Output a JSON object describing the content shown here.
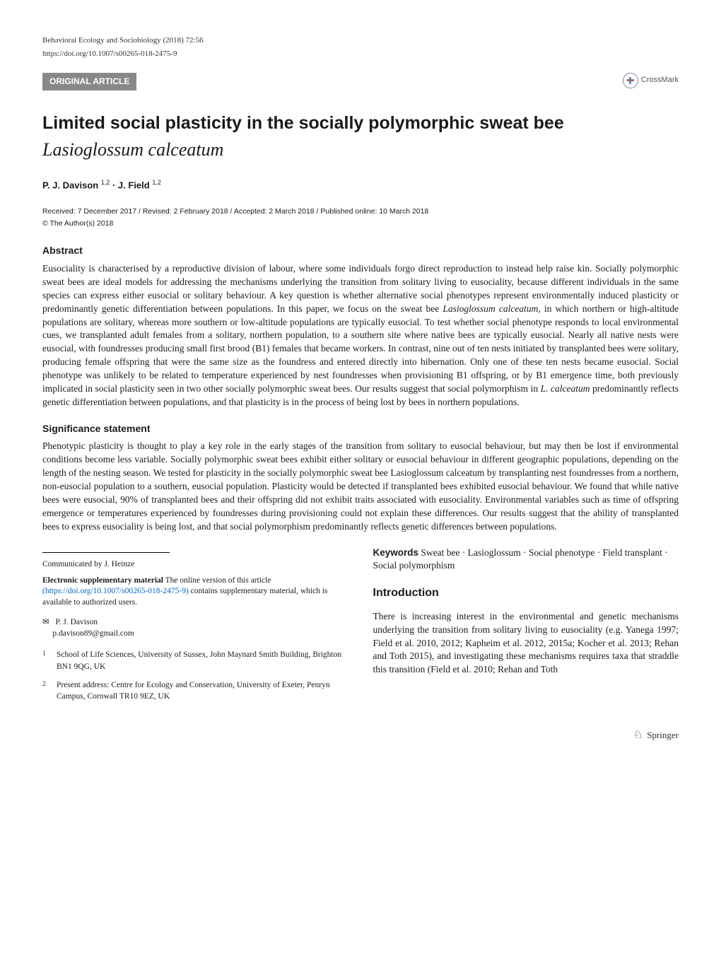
{
  "journal": {
    "citation": "Behavioral Ecology and Sociobiology (2018) 72:56",
    "doi": "https://doi.org/10.1007/s00265-018-2475-9"
  },
  "article_type": "ORIGINAL ARTICLE",
  "crossmark_label": "CrossMark",
  "title": {
    "line1": "Limited social plasticity in the socially polymorphic sweat bee",
    "line2": "Lasioglossum calceatum"
  },
  "authors_html": "P. J. Davison <sup>1,2</sup> · J. Field <sup>1,2</sup>",
  "dates": "Received: 7 December 2017 / Revised: 2 February 2018 / Accepted: 2 March 2018 / Published online: 10 March 2018",
  "copyright": "© The Author(s) 2018",
  "abstract": {
    "heading": "Abstract",
    "text": "Eusociality is characterised by a reproductive division of labour, where some individuals forgo direct reproduction to instead help raise kin. Socially polymorphic sweat bees are ideal models for addressing the mechanisms underlying the transition from solitary living to eusociality, because different individuals in the same species can express either eusocial or solitary behaviour. A key question is whether alternative social phenotypes represent environmentally induced plasticity or predominantly genetic differentiation between populations. In this paper, we focus on the sweat bee Lasioglossum calceatum, in which northern or high-altitude populations are solitary, whereas more southern or low-altitude populations are typically eusocial. To test whether social phenotype responds to local environmental cues, we transplanted adult females from a solitary, northern population, to a southern site where native bees are typically eusocial. Nearly all native nests were eusocial, with foundresses producing small first brood (B1) females that became workers. In contrast, nine out of ten nests initiated by transplanted bees were solitary, producing female offspring that were the same size as the foundress and entered directly into hibernation. Only one of these ten nests became eusocial. Social phenotype was unlikely to be related to temperature experienced by nest foundresses when provisioning B1 offspring, or by B1 emergence time, both previously implicated in social plasticity seen in two other socially polymorphic sweat bees. Our results suggest that social polymorphism in L. calceatum predominantly reflects genetic differentiation between populations, and that plasticity is in the process of being lost by bees in northern populations."
  },
  "significance": {
    "heading": "Significance statement",
    "text": "Phenotypic plasticity is thought to play a key role in the early stages of the transition from solitary to eusocial behaviour, but may then be lost if environmental conditions become less variable. Socially polymorphic sweat bees exhibit either solitary or eusocial behaviour in different geographic populations, depending on the length of the nesting season. We tested for plasticity in the socially polymorphic sweat bee Lasioglossum calceatum by transplanting nest foundresses from a northern, non-eusocial population to a southern, eusocial population. Plasticity would be detected if transplanted bees exhibited eusocial behaviour. We found that while native bees were eusocial, 90% of transplanted bees and their offspring did not exhibit traits associated with eusociality. Environmental variables such as time of offspring emergence or temperatures experienced by foundresses during provisioning could not explain these differences. Our results suggest that the ability of transplanted bees to express eusociality is being lost, and that social polymorphism predominantly reflects genetic differences between populations."
  },
  "keywords": {
    "label": "Keywords",
    "text": "Sweat bee · Lasioglossum · Social phenotype · Field transplant · Social polymorphism"
  },
  "communicated": "Communicated by J. Heinze",
  "supplementary": {
    "label": "Electronic supplementary material",
    "text1": "The online version of this article",
    "link": "(https://doi.org/10.1007/s00265-018-2475-9)",
    "text2": "contains supplementary material, which is available to authorized users."
  },
  "corresponding": {
    "name": "P. J. Davison",
    "email": "p.davison89@gmail.com"
  },
  "affiliations": [
    {
      "num": "1",
      "text": "School of Life Sciences, University of Sussex, John Maynard Smith Building, Brighton BN1 9QG, UK"
    },
    {
      "num": "2",
      "text": "Present address: Centre for Ecology and Conservation, University of Exeter, Penryn Campus, Cornwall TR10 9EZ, UK"
    }
  ],
  "introduction": {
    "heading": "Introduction",
    "text": "There is increasing interest in the environmental and genetic mechanisms underlying the transition from solitary living to eusociality (e.g. Yanega 1997; Field et al. 2010, 2012; Kapheim et al. 2012, 2015a; Kocher et al. 2013; Rehan and Toth 2015), and investigating these mechanisms requires taxa that straddle this transition (Field et al. 2010; Rehan and Toth"
  },
  "publisher": "Springer",
  "colors": {
    "background": "#ffffff",
    "text": "#1a1a1a",
    "bar_bg": "#888888",
    "bar_text": "#ffffff",
    "link": "#0066cc"
  }
}
